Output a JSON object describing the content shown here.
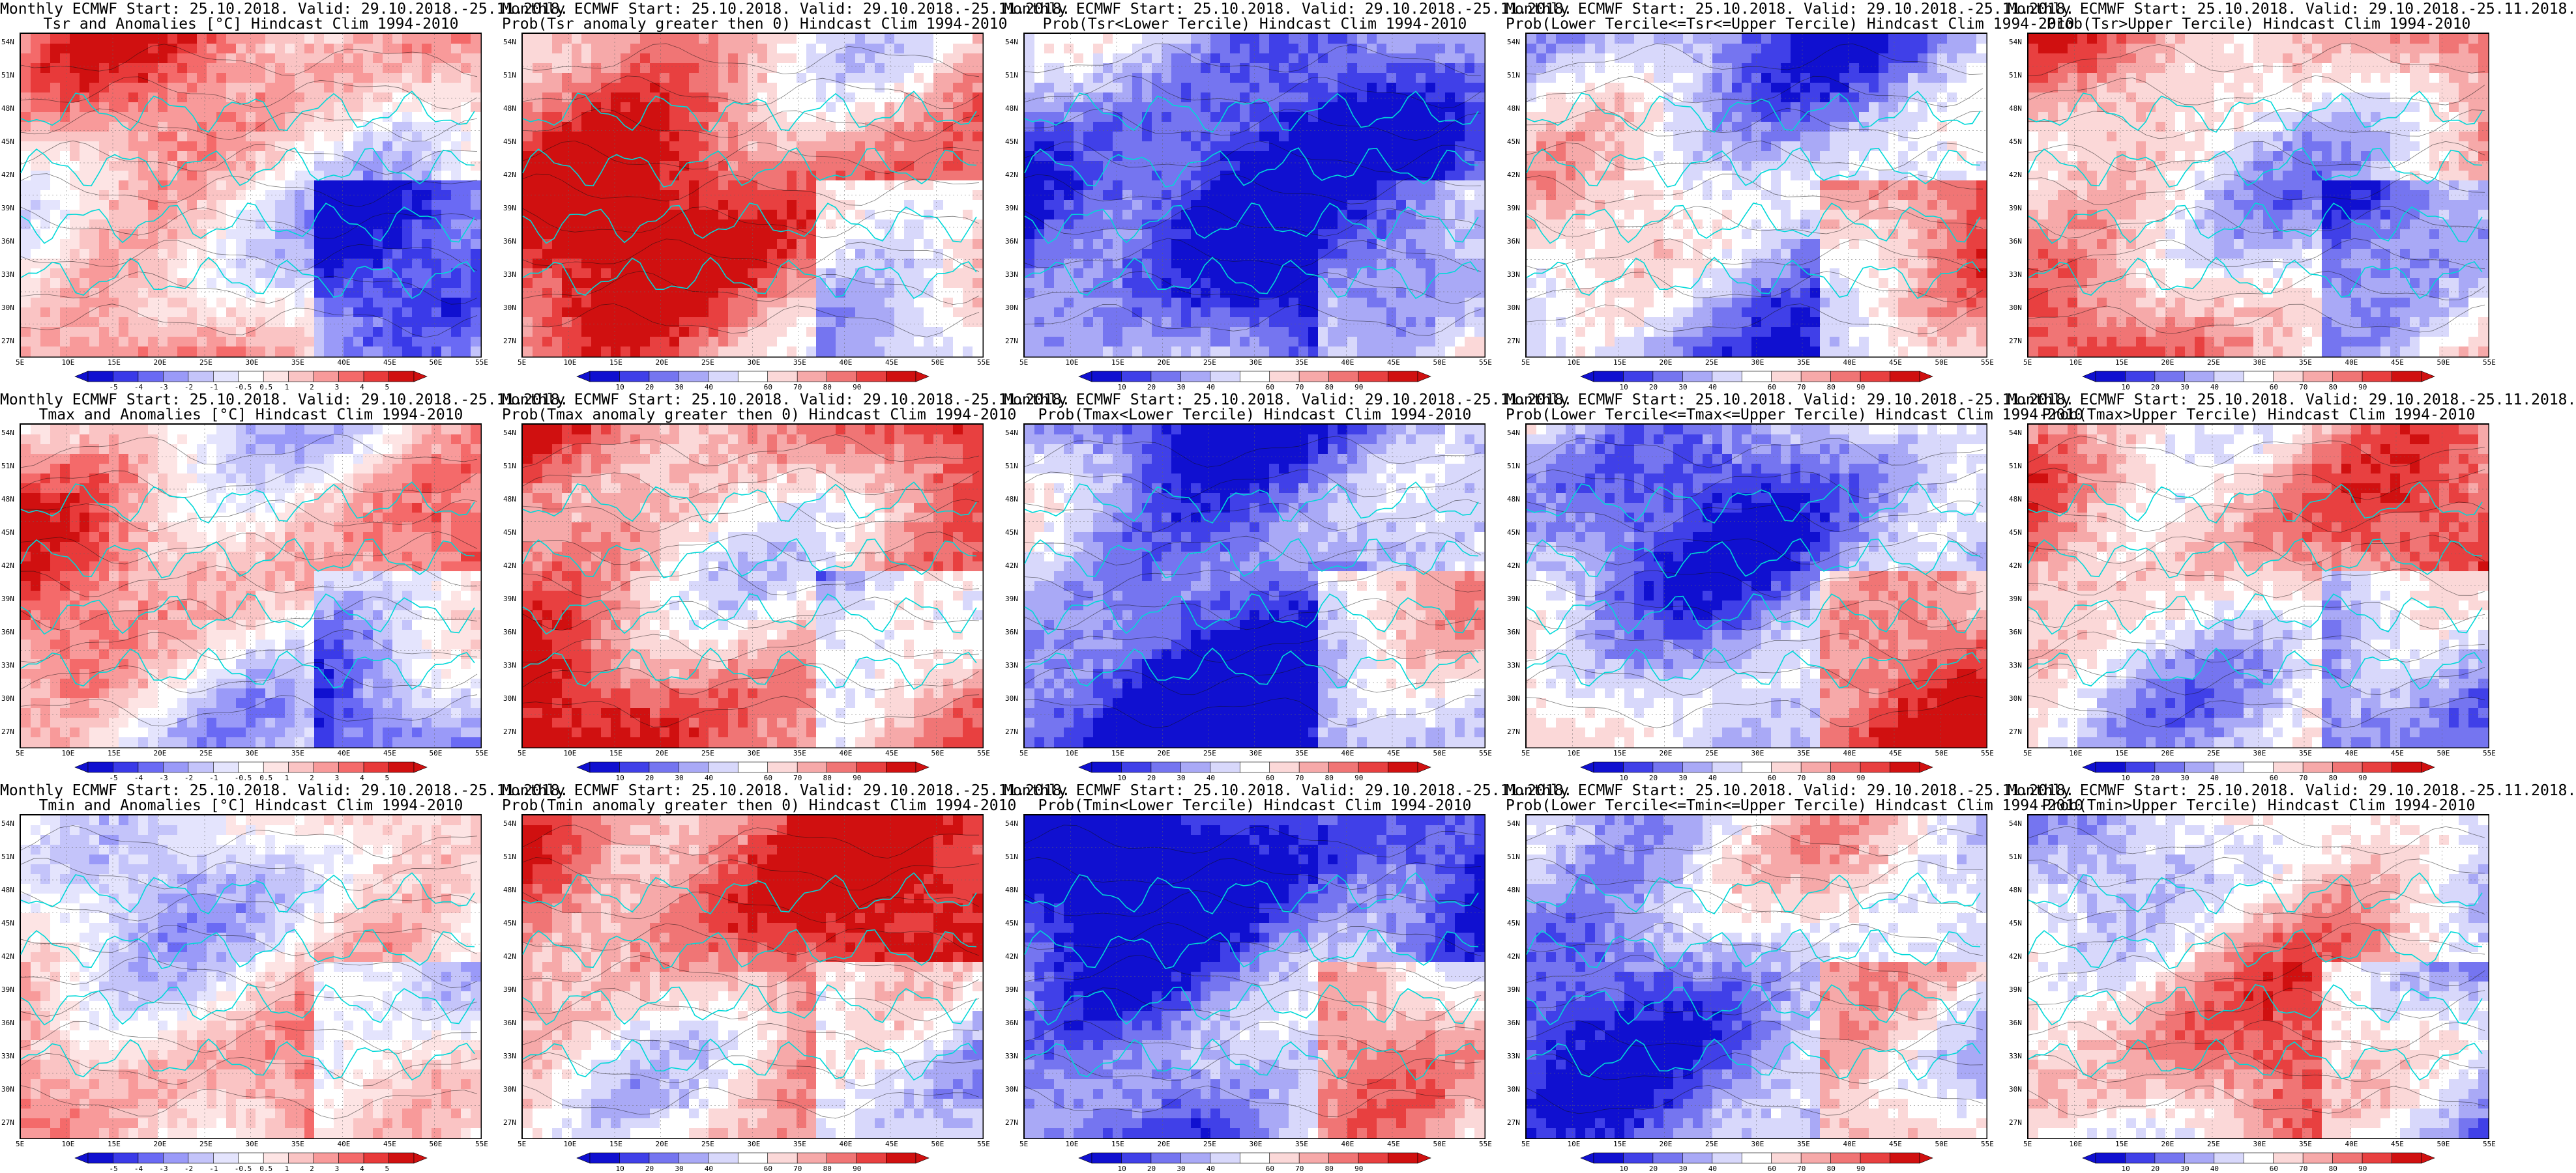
{
  "colors": {
    "anom": [
      "#1010d0",
      "#3a3ae8",
      "#6a6af4",
      "#9a9af8",
      "#c4c4fa",
      "#e4e4fd",
      "#ffffff",
      "#fde4e4",
      "#fac4c4",
      "#f89a9a",
      "#f46a6a",
      "#e83a3a",
      "#d01010"
    ],
    "prob": [
      "#1010d0",
      "#4040e8",
      "#7575f0",
      "#a9a9f6",
      "#d8d8fb",
      "#ffffff",
      "#fbd8d8",
      "#f6a9a9",
      "#f07575",
      "#e84040",
      "#d01010"
    ],
    "coast": "#00d8d8",
    "contour": "#111111"
  },
  "lat_labels": [
    "54N",
    "51N",
    "48N",
    "45N",
    "42N",
    "39N",
    "36N",
    "33N",
    "30N",
    "27N"
  ],
  "lon_labels": [
    "5E",
    "10E",
    "15E",
    "20E",
    "25E",
    "30E",
    "35E",
    "40E",
    "45E",
    "50E",
    "55E"
  ],
  "anom_labels": [
    "-5",
    "-4",
    "-3",
    "-2",
    "-1",
    "-0.5",
    "0.5",
    "1",
    "2",
    "3",
    "4",
    "5"
  ],
  "prob_labels": [
    "10",
    "20",
    "30",
    "40",
    "60",
    "70",
    "80",
    "90"
  ],
  "panels": [
    {
      "id": "tsr-anom",
      "title1": "Monthly ECMWF Start: 25.10.2018. Valid: 29.10.2018.-25.11.2018.",
      "title2": "Tsr and Anomalies [°C] Hindcast Clim 1994-2010",
      "palette": "anom",
      "bias": 0.25
    },
    {
      "id": "tsr-prob-pos",
      "title1": "Monthly ECMWF Start: 25.10.2018. Valid: 29.10.2018.-25.11.2018.",
      "title2": "Prob(Tsr anomaly greater then 0) Hindcast Clim 1994-2010",
      "palette": "prob",
      "bias": 0.55
    },
    {
      "id": "tsr-prob-lower",
      "title1": "Monthly ECMWF Start: 25.10.2018. Valid: 29.10.2018.-25.11.2018.",
      "title2": "Prob(Tsr<Lower Tercile) Hindcast Clim 1994-2010",
      "palette": "prob",
      "bias": -0.75
    },
    {
      "id": "tsr-prob-middle",
      "title1": "Monthly ECMWF Start: 25.10.2018. Valid: 29.10.2018.-25.11.2018.",
      "title2": "Prob(Lower Tercile<=Tsr<=Upper Tercile) Hindcast Clim 1994-2010",
      "palette": "prob",
      "bias": -0.3
    },
    {
      "id": "tsr-prob-upper",
      "title1": "Monthly ECMWF Start: 25.10.2018. Valid: 29.10.2018.-25.11.2018.",
      "title2": "Prob(Tsr>Upper Tercile) Hindcast Clim 1994-2010",
      "palette": "prob",
      "bias": 0.25
    },
    {
      "id": "tmax-anom",
      "title1": "Monthly ECMWF Start: 25.10.2018. Valid: 29.10.2018.-25.11.2018.",
      "title2": "Tmax and Anomalies [°C] Hindcast Clim 1994-2010",
      "palette": "anom",
      "bias": 0.2
    },
    {
      "id": "tmax-prob-pos",
      "title1": "Monthly ECMWF Start: 25.10.2018. Valid: 29.10.2018.-25.11.2018.",
      "title2": "Prob(Tmax anomaly greater then 0) Hindcast Clim 1994-2010",
      "palette": "prob",
      "bias": 0.55
    },
    {
      "id": "tmax-prob-lower",
      "title1": "Monthly ECMWF Start: 25.10.2018. Valid: 29.10.2018.-25.11.2018.",
      "title2": "Prob(Tmax<Lower Tercile) Hindcast Clim 1994-2010",
      "palette": "prob",
      "bias": -0.7
    },
    {
      "id": "tmax-prob-middle",
      "title1": "Monthly ECMWF Start: 25.10.2018. Valid: 29.10.2018.-25.11.2018.",
      "title2": "Prob(Lower Tercile<=Tmax<=Upper Tercile) Hindcast Clim 1994-2010",
      "palette": "prob",
      "bias": -0.3
    },
    {
      "id": "tmax-prob-upper",
      "title1": "Monthly ECMWF Start: 25.10.2018. Valid: 29.10.2018.-25.11.2018.",
      "title2": "Prob(Tmax>Upper Tercile) Hindcast Clim 1994-2010",
      "palette": "prob",
      "bias": 0.2
    },
    {
      "id": "tmin-anom",
      "title1": "Monthly ECMWF Start: 25.10.2018. Valid: 29.10.2018.-25.11.2018.",
      "title2": "Tmin and Anomalies [°C] Hindcast Clim 1994-2010",
      "palette": "anom",
      "bias": 0.2
    },
    {
      "id": "tmin-prob-pos",
      "title1": "Monthly ECMWF Start: 25.10.2018. Valid: 29.10.2018.-25.11.2018.",
      "title2": "Prob(Tmin anomaly greater then 0) Hindcast Clim 1994-2010",
      "palette": "prob",
      "bias": 0.5
    },
    {
      "id": "tmin-prob-lower",
      "title1": "Monthly ECMWF Start: 25.10.2018. Valid: 29.10.2018.-25.11.2018.",
      "title2": "Prob(Tmin<Lower Tercile) Hindcast Clim 1994-2010",
      "palette": "prob",
      "bias": -0.65
    },
    {
      "id": "tmin-prob-middle",
      "title1": "Monthly ECMWF Start: 25.10.2018. Valid: 29.10.2018.-25.11.2018.",
      "title2": "Prob(Lower Tercile<=Tmin<=Upper Tercile) Hindcast Clim 1994-2010",
      "palette": "prob",
      "bias": -0.35
    },
    {
      "id": "tmin-prob-upper",
      "title1": "Monthly ECMWF Start: 25.10.2018. Valid: 29.10.2018.-25.11.2018.",
      "title2": "Prob(Tmin>Upper Tercile) Hindcast Clim 1994-2010",
      "palette": "prob",
      "bias": 0.2
    }
  ]
}
